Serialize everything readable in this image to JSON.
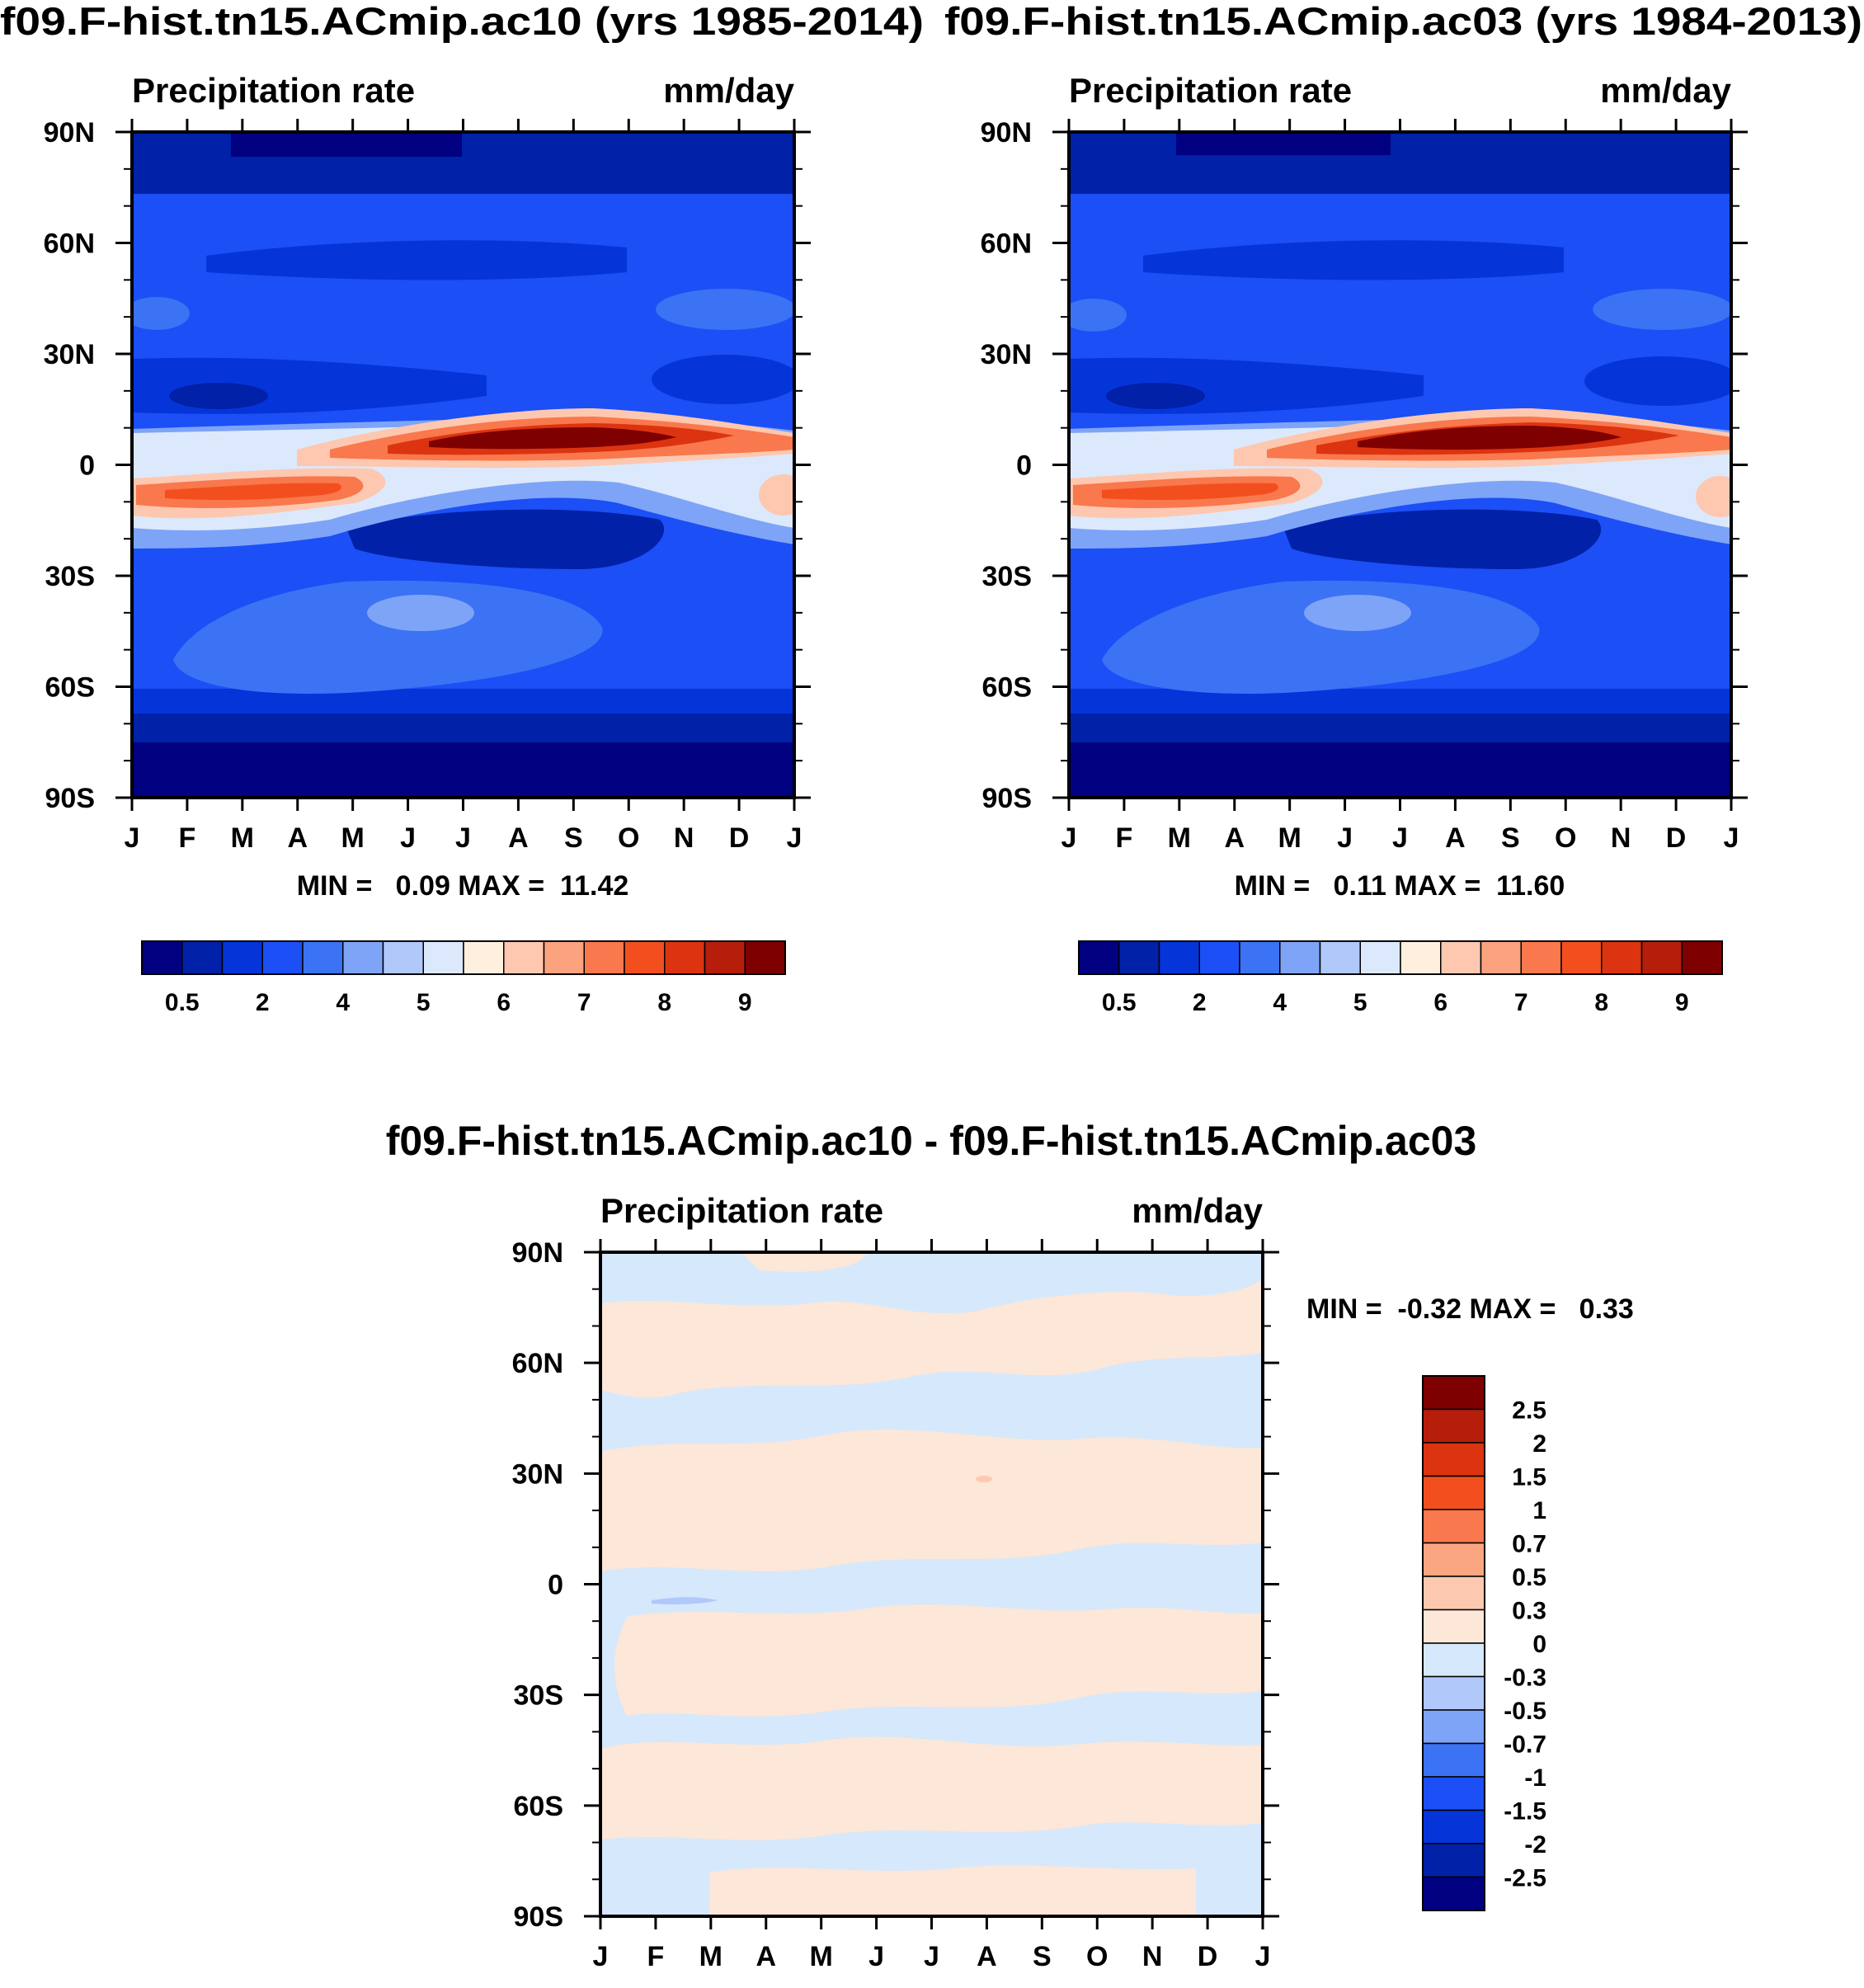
{
  "colors": {
    "precip_levels": [
      "#000080",
      "#0021A8",
      "#0535D9",
      "#1C4FF5",
      "#3C72F4",
      "#7EA4F8",
      "#B0C8FA",
      "#DCE9FC",
      "#FFEFDF",
      "#FDC8AF",
      "#FBA27E",
      "#F9784D",
      "#F34F1E",
      "#DC3410",
      "#B61D0A",
      "#7F0000"
    ],
    "diff_levels": [
      "#000080",
      "#0021A8",
      "#0535D9",
      "#1C4FF5",
      "#3C72F4",
      "#7EA4F8",
      "#B0C8FA",
      "#D6E8FB",
      "#FCE7D8",
      "#FCC9B0",
      "#FAA681",
      "#F9784D",
      "#F34F1E",
      "#DC3410",
      "#B61D0A",
      "#7F0000"
    ]
  },
  "chart_data": [
    {
      "type": "heatmap",
      "title": "f09.F-hist.tn15.ACmip.ac10 (yrs 1985-2014)",
      "left_label": "Precipitation rate",
      "right_label": "mm/day",
      "x_tick_labels": [
        "J",
        "F",
        "M",
        "A",
        "M",
        "J",
        "J",
        "A",
        "S",
        "O",
        "N",
        "D",
        "J"
      ],
      "y_tick_labels": [
        "90N",
        "60N",
        "30N",
        "0",
        "30S",
        "60S",
        "90S"
      ],
      "ylim": [
        -90,
        90
      ],
      "min_max_text": "MIN =   0.09 MAX =  11.42",
      "min": 0.09,
      "max": 11.42,
      "colorbar_labels": [
        "0.5",
        "2",
        "4",
        "5",
        "6",
        "7",
        "8",
        "9"
      ],
      "colorbar_orientation": "horizontal"
    },
    {
      "type": "heatmap",
      "title": "f09.F-hist.tn15.ACmip.ac03 (yrs 1984-2013)",
      "left_label": "Precipitation rate",
      "right_label": "mm/day",
      "x_tick_labels": [
        "J",
        "F",
        "M",
        "A",
        "M",
        "J",
        "J",
        "A",
        "S",
        "O",
        "N",
        "D",
        "J"
      ],
      "y_tick_labels": [
        "90N",
        "60N",
        "30N",
        "0",
        "30S",
        "60S",
        "90S"
      ],
      "ylim": [
        -90,
        90
      ],
      "min_max_text": "MIN =   0.11 MAX =  11.60",
      "min": 0.11,
      "max": 11.6,
      "colorbar_labels": [
        "0.5",
        "2",
        "4",
        "5",
        "6",
        "7",
        "8",
        "9"
      ],
      "colorbar_orientation": "horizontal"
    },
    {
      "type": "heatmap",
      "title": "f09.F-hist.tn15.ACmip.ac10 - f09.F-hist.tn15.ACmip.ac03",
      "left_label": "Precipitation rate",
      "right_label": "mm/day",
      "x_tick_labels": [
        "J",
        "F",
        "M",
        "A",
        "M",
        "J",
        "J",
        "A",
        "S",
        "O",
        "N",
        "D",
        "J"
      ],
      "y_tick_labels": [
        "90N",
        "60N",
        "30N",
        "0",
        "30S",
        "60S",
        "90S"
      ],
      "ylim": [
        -90,
        90
      ],
      "min_max_text": "MIN =  -0.32 MAX =   0.33",
      "min": -0.32,
      "max": 0.33,
      "colorbar_labels": [
        "2.5",
        "2",
        "1.5",
        "1",
        "0.7",
        "0.5",
        "0.3",
        "0",
        "-0.3",
        "-0.5",
        "-0.7",
        "-1",
        "-1.5",
        "-2",
        "-2.5"
      ],
      "colorbar_orientation": "vertical"
    }
  ]
}
